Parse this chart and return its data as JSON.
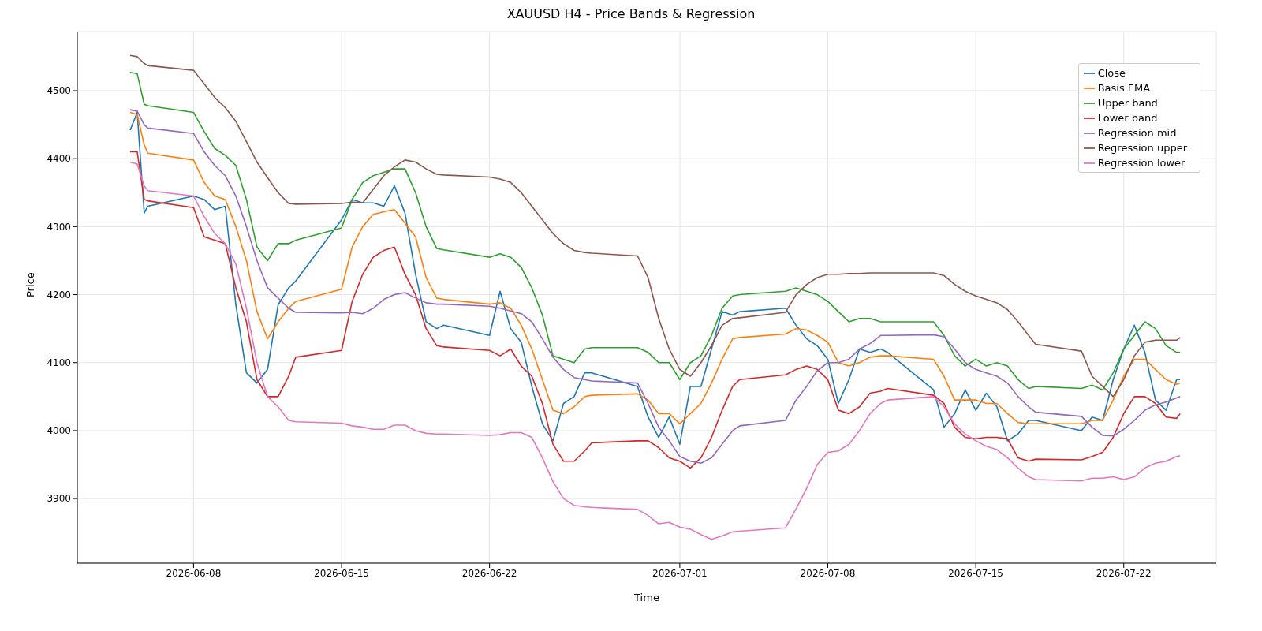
{
  "chart_data": {
    "type": "line",
    "title": "XAUUSD H4 - Price Bands & Regression",
    "xlabel": "Time",
    "ylabel": "Price",
    "x": [
      "2026-06-05T00:00",
      "2026-06-05T08:00",
      "2026-06-05T16:00",
      "2026-06-05T20:00",
      "2026-06-08T00:00",
      "2026-06-08T12:00",
      "2026-06-09T00:00",
      "2026-06-09T12:00",
      "2026-06-10T00:00",
      "2026-06-10T12:00",
      "2026-06-11T00:00",
      "2026-06-11T12:00",
      "2026-06-12T00:00",
      "2026-06-12T12:00",
      "2026-06-12T20:00",
      "2026-06-15T00:00",
      "2026-06-15T12:00",
      "2026-06-16T00:00",
      "2026-06-16T12:00",
      "2026-06-17T00:00",
      "2026-06-17T12:00",
      "2026-06-18T00:00",
      "2026-06-18T12:00",
      "2026-06-19T00:00",
      "2026-06-19T12:00",
      "2026-06-19T20:00",
      "2026-06-22T00:00",
      "2026-06-22T12:00",
      "2026-06-23T00:00",
      "2026-06-23T12:00",
      "2026-06-24T00:00",
      "2026-06-24T12:00",
      "2026-06-25T00:00",
      "2026-06-25T12:00",
      "2026-06-26T00:00",
      "2026-06-26T12:00",
      "2026-06-26T20:00",
      "2026-06-29T00:00",
      "2026-06-29T12:00",
      "2026-06-30T00:00",
      "2026-06-30T12:00",
      "2026-07-01T00:00",
      "2026-07-01T12:00",
      "2026-07-02T00:00",
      "2026-07-02T12:00",
      "2026-07-03T00:00",
      "2026-07-03T12:00",
      "2026-07-03T20:00",
      "2026-07-06T00:00",
      "2026-07-06T12:00",
      "2026-07-07T00:00",
      "2026-07-07T12:00",
      "2026-07-08T00:00",
      "2026-07-08T12:00",
      "2026-07-09T00:00",
      "2026-07-09T12:00",
      "2026-07-10T00:00",
      "2026-07-10T12:00",
      "2026-07-10T20:00",
      "2026-07-13T00:00",
      "2026-07-13T12:00",
      "2026-07-14T00:00",
      "2026-07-14T12:00",
      "2026-07-15T00:00",
      "2026-07-15T12:00",
      "2026-07-16T00:00",
      "2026-07-16T12:00",
      "2026-07-17T00:00",
      "2026-07-17T12:00",
      "2026-07-17T20:00",
      "2026-07-20T00:00",
      "2026-07-20T12:00",
      "2026-07-21T00:00",
      "2026-07-21T12:00",
      "2026-07-22T00:00",
      "2026-07-22T12:00",
      "2026-07-23T00:00",
      "2026-07-23T12:00",
      "2026-07-24T00:00",
      "2026-07-24T12:00",
      "2026-07-24T16:00"
    ],
    "series": [
      {
        "name": "Close",
        "color": "#1f77b4",
        "values": [
          4442,
          4468,
          4320,
          4330,
          4345,
          4340,
          4325,
          4330,
          4185,
          4085,
          4070,
          4090,
          4185,
          4210,
          4220,
          4310,
          4340,
          4335,
          4335,
          4330,
          4360,
          4320,
          4230,
          4160,
          4150,
          4155,
          4140,
          4205,
          4150,
          4130,
          4065,
          4010,
          3985,
          4040,
          4050,
          4085,
          4085,
          4065,
          4020,
          3990,
          4020,
          3980,
          4065,
          4065,
          4120,
          4175,
          4170,
          4175,
          4180,
          4155,
          4135,
          4125,
          4105,
          4040,
          4075,
          4120,
          4115,
          4120,
          4115,
          4060,
          4005,
          4025,
          4060,
          4030,
          4055,
          4035,
          3985,
          3995,
          4015,
          4015,
          4000,
          4020,
          4015,
          4075,
          4120,
          4155,
          4115,
          4045,
          4030,
          4075,
          4075
        ]
      },
      {
        "name": "Basis EMA",
        "color": "#ff7f0e",
        "values": [
          4468,
          4465,
          4420,
          4408,
          4398,
          4365,
          4345,
          4340,
          4300,
          4250,
          4175,
          4135,
          4160,
          4180,
          4190,
          4208,
          4270,
          4300,
          4318,
          4322,
          4325,
          4305,
          4285,
          4225,
          4195,
          4193,
          4186,
          4188,
          4180,
          4155,
          4120,
          4075,
          4030,
          4025,
          4035,
          4050,
          4052,
          4054,
          4045,
          4025,
          4025,
          4010,
          4025,
          4040,
          4070,
          4105,
          4135,
          4137,
          4142,
          4150,
          4148,
          4140,
          4130,
          4100,
          4095,
          4100,
          4108,
          4110,
          4110,
          4105,
          4080,
          4045,
          4045,
          4045,
          4040,
          4040,
          4025,
          4012,
          4010,
          4010,
          4010,
          4015,
          4015,
          4045,
          4080,
          4105,
          4105,
          4090,
          4075,
          4068,
          4070
        ]
      },
      {
        "name": "Upper band",
        "color": "#2ca02c",
        "values": [
          4527,
          4525,
          4480,
          4478,
          4468,
          4440,
          4415,
          4405,
          4390,
          4340,
          4270,
          4250,
          4275,
          4275,
          4280,
          4298,
          4340,
          4365,
          4375,
          4380,
          4385,
          4385,
          4350,
          4300,
          4268,
          4266,
          4255,
          4260,
          4255,
          4240,
          4210,
          4170,
          4110,
          4105,
          4100,
          4120,
          4122,
          4122,
          4115,
          4100,
          4100,
          4075,
          4100,
          4110,
          4140,
          4180,
          4198,
          4200,
          4205,
          4210,
          4205,
          4200,
          4190,
          4175,
          4160,
          4165,
          4165,
          4160,
          4160,
          4160,
          4140,
          4110,
          4095,
          4105,
          4095,
          4100,
          4095,
          4075,
          4062,
          4065,
          4062,
          4067,
          4060,
          4085,
          4120,
          4140,
          4160,
          4150,
          4125,
          4115,
          4115
        ]
      },
      {
        "name": "Lower band",
        "color": "#d62728",
        "values": [
          4410,
          4410,
          4340,
          4338,
          4328,
          4285,
          4280,
          4275,
          4210,
          4160,
          4075,
          4050,
          4050,
          4080,
          4108,
          4118,
          4190,
          4230,
          4255,
          4265,
          4270,
          4230,
          4200,
          4150,
          4125,
          4123,
          4118,
          4110,
          4120,
          4095,
          4080,
          4040,
          3980,
          3955,
          3955,
          3970,
          3982,
          3985,
          3985,
          3975,
          3960,
          3955,
          3945,
          3960,
          3990,
          4030,
          4065,
          4075,
          4082,
          4090,
          4095,
          4090,
          4075,
          4030,
          4025,
          4035,
          4055,
          4058,
          4062,
          4052,
          4040,
          4005,
          3990,
          3988,
          3990,
          3990,
          3988,
          3960,
          3955,
          3958,
          3957,
          3962,
          3968,
          3990,
          4025,
          4050,
          4050,
          4040,
          4020,
          4018,
          4025
        ]
      },
      {
        "name": "Regression mid",
        "color": "#9467bd",
        "values": [
          4472,
          4470,
          4450,
          4445,
          4437,
          4410,
          4390,
          4375,
          4345,
          4300,
          4250,
          4210,
          4195,
          4180,
          4174,
          4173,
          4174,
          4172,
          4180,
          4193,
          4200,
          4203,
          4195,
          4188,
          4186,
          4186,
          4183,
          4180,
          4176,
          4172,
          4160,
          4135,
          4108,
          4090,
          4078,
          4075,
          4073,
          4070,
          4040,
          4005,
          3985,
          3962,
          3955,
          3952,
          3960,
          3980,
          4000,
          4007,
          4015,
          4045,
          4065,
          4088,
          4100,
          4100,
          4105,
          4120,
          4128,
          4140,
          4140,
          4141,
          4138,
          4120,
          4100,
          4090,
          4085,
          4080,
          4070,
          4050,
          4035,
          4027,
          4021,
          4005,
          3993,
          3992,
          4002,
          4015,
          4030,
          4038,
          4042,
          4048,
          4050
        ]
      },
      {
        "name": "Regression upper",
        "color": "#8c564b",
        "values": [
          4552,
          4550,
          4540,
          4537,
          4530,
          4510,
          4490,
          4475,
          4455,
          4425,
          4395,
          4372,
          4350,
          4334,
          4333,
          4334,
          4336,
          4335,
          4355,
          4375,
          4388,
          4398,
          4395,
          4385,
          4377,
          4376,
          4373,
          4370,
          4365,
          4350,
          4330,
          4310,
          4290,
          4275,
          4265,
          4262,
          4261,
          4257,
          4225,
          4165,
          4120,
          4090,
          4080,
          4100,
          4125,
          4155,
          4165,
          4166,
          4174,
          4200,
          4215,
          4225,
          4230,
          4230,
          4231,
          4231,
          4232,
          4232,
          4232,
          4232,
          4228,
          4215,
          4205,
          4198,
          4193,
          4188,
          4178,
          4160,
          4140,
          4127,
          4117,
          4080,
          4065,
          4050,
          4075,
          4110,
          4130,
          4133,
          4133,
          4133,
          4137
        ]
      },
      {
        "name": "Regression lower",
        "color": "#e377c2",
        "values": [
          4395,
          4392,
          4360,
          4353,
          4345,
          4315,
          4290,
          4275,
          4245,
          4180,
          4100,
          4050,
          4035,
          4015,
          4013,
          4011,
          4007,
          4005,
          4002,
          4002,
          4008,
          4008,
          4000,
          3996,
          3995,
          3995,
          3993,
          3994,
          3997,
          3997,
          3990,
          3960,
          3925,
          3900,
          3890,
          3888,
          3887,
          3884,
          3875,
          3863,
          3865,
          3858,
          3855,
          3847,
          3840,
          3845,
          3851,
          3852,
          3857,
          3885,
          3915,
          3950,
          3968,
          3970,
          3980,
          4000,
          4025,
          4040,
          4045,
          4050,
          4035,
          4010,
          3995,
          3985,
          3977,
          3972,
          3960,
          3945,
          3932,
          3928,
          3926,
          3930,
          3930,
          3932,
          3928,
          3932,
          3945,
          3952,
          3955,
          3962,
          3963
        ]
      }
    ],
    "xlim": [
      "2026-06-02T12:00",
      "2026-07-26T09:00"
    ],
    "xticks": [
      "2026-06-08",
      "2026-06-15",
      "2026-06-22",
      "2026-07-01",
      "2026-07-08",
      "2026-07-15",
      "2026-07-22"
    ],
    "ylim": [
      3805,
      4587
    ],
    "yticks": [
      3900,
      4000,
      4100,
      4200,
      4300,
      4400,
      4500
    ],
    "grid": true,
    "legend": "top right",
    "line_style": "solid"
  }
}
